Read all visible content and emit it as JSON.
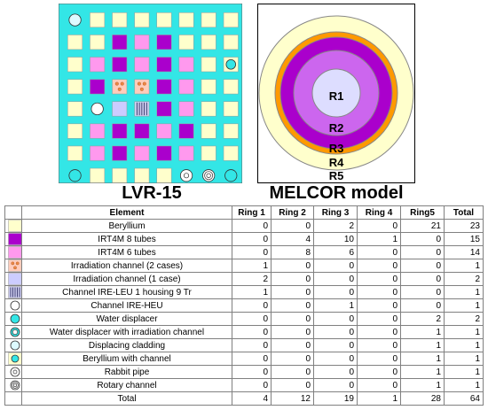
{
  "left_panel": {
    "title": "LVR-15"
  },
  "right_panel": {
    "title": "MELCOR model",
    "ring_labels": [
      "R1",
      "R2",
      "R3",
      "R4",
      "R5"
    ]
  },
  "colors": {
    "grid_bg": "#33e6e6",
    "beryllium": "#ffffcc",
    "irt4m_8": "#aa00cc",
    "irt4m_6": "#ff99ee",
    "irradiation_1": "#ccccff",
    "irradiation_2": "#ffccbb",
    "ring_outer": "#ffffcc",
    "ring_orange": "#ff9900",
    "ring_purple": "#aa00cc",
    "ring_mid": "#cc66ee",
    "ring_inner": "#ddddff"
  },
  "table": {
    "headers": [
      "Element",
      "Ring 1",
      "Ring 2",
      "Ring 3",
      "Ring 4",
      "Ring5",
      "Total"
    ],
    "rows": [
      {
        "name": "Beryllium",
        "icon": "beryllium-square-icon",
        "values": [
          "0",
          "0",
          "2",
          "0",
          "21",
          "23"
        ]
      },
      {
        "name": "IRT4M 8 tubes",
        "icon": "irt4m-8-tubes-icon",
        "values": [
          "0",
          "4",
          "10",
          "1",
          "0",
          "15"
        ]
      },
      {
        "name": "IRT4M 6 tubes",
        "icon": "irt4m-6-tubes-icon",
        "values": [
          "0",
          "8",
          "6",
          "0",
          "0",
          "14"
        ]
      },
      {
        "name": "Irradiation channel (2 cases)",
        "icon": "irradiation-2-cases-icon",
        "values": [
          "1",
          "0",
          "0",
          "0",
          "0",
          "1"
        ]
      },
      {
        "name": "Irradiation channel (1 case)",
        "icon": "irradiation-1-case-icon",
        "values": [
          "2",
          "0",
          "0",
          "0",
          "0",
          "2"
        ]
      },
      {
        "name": "Channel IRE-LEU 1 housing 9 Tr",
        "icon": "ire-leu-channel-icon",
        "values": [
          "1",
          "0",
          "0",
          "0",
          "0",
          "1"
        ]
      },
      {
        "name": "Channel IRE-HEU",
        "icon": "ire-heu-channel-icon",
        "values": [
          "0",
          "0",
          "1",
          "0",
          "0",
          "1"
        ]
      },
      {
        "name": "Water displacer",
        "icon": "water-displacer-icon",
        "values": [
          "0",
          "0",
          "0",
          "0",
          "2",
          "2"
        ]
      },
      {
        "name": "Water displacer with irradiation channel",
        "icon": "water-displacer-irradiation-icon",
        "values": [
          "0",
          "0",
          "0",
          "0",
          "1",
          "1"
        ]
      },
      {
        "name": "Displacing cladding",
        "icon": "displacing-cladding-icon",
        "values": [
          "0",
          "0",
          "0",
          "0",
          "1",
          "1"
        ]
      },
      {
        "name": "Beryllium with channel",
        "icon": "beryllium-channel-icon",
        "values": [
          "0",
          "0",
          "0",
          "0",
          "1",
          "1"
        ]
      },
      {
        "name": "Rabbit pipe",
        "icon": "rabbit-pipe-icon",
        "values": [
          "0",
          "0",
          "0",
          "0",
          "1",
          "1"
        ]
      },
      {
        "name": "Rotary channel",
        "icon": "rotary-channel-icon",
        "values": [
          "0",
          "0",
          "0",
          "0",
          "1",
          "1"
        ]
      }
    ],
    "total_row": {
      "name": "Total",
      "values": [
        "4",
        "12",
        "19",
        "1",
        "28",
        "64"
      ]
    }
  }
}
